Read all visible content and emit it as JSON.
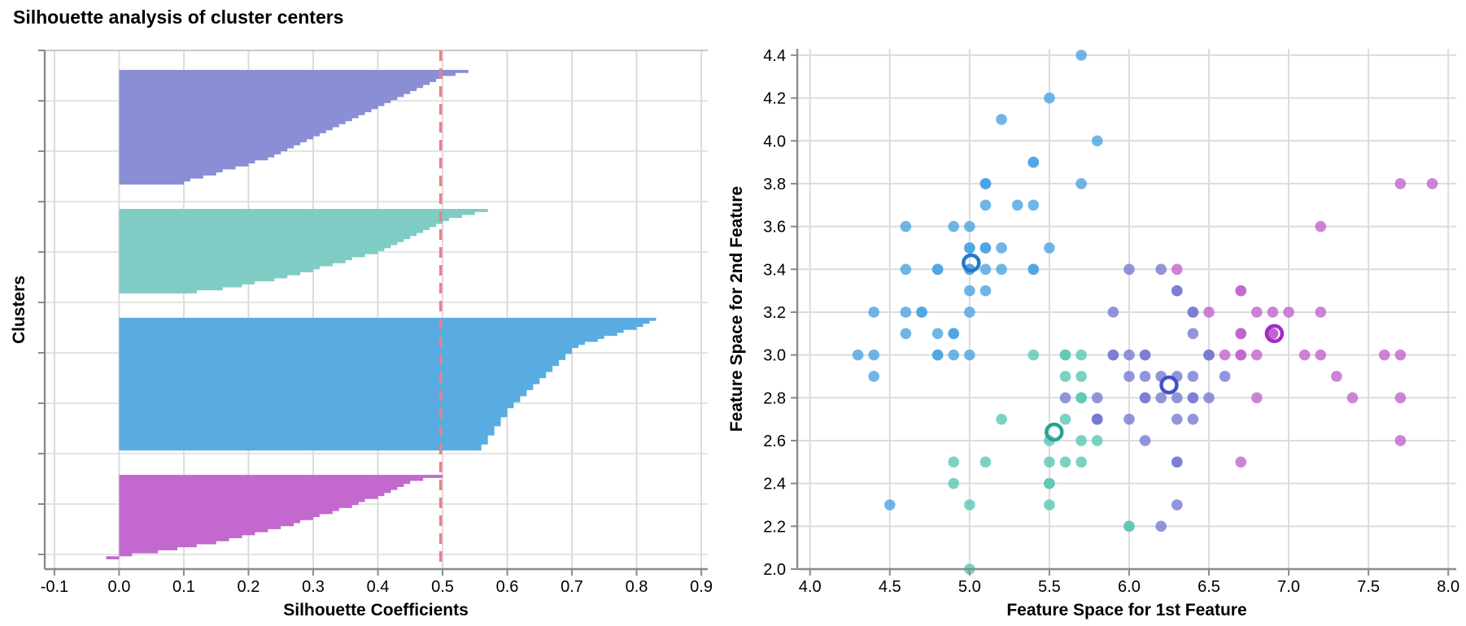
{
  "title": "Silhouette analysis of cluster centers",
  "colors": {
    "grid": "#dcdcdc",
    "spine": "#8a8a8a",
    "frame_light": "#c8c8c8",
    "avg_line": "#ee7e8a",
    "background": "#ffffff"
  },
  "chart_data": [
    {
      "type": "area",
      "name": "silhouette-plot",
      "xlabel": "Silhouette Coefficients",
      "ylabel": "Clusters",
      "xlim": [
        -0.115,
        0.91
      ],
      "xticks": [
        -0.1,
        0.0,
        0.1,
        0.2,
        0.3,
        0.4,
        0.5,
        0.6,
        0.7,
        0.8,
        0.9
      ],
      "xtick_labels": [
        "-0.1",
        "0.0",
        "0.1",
        "0.2",
        "0.3",
        "0.4",
        "0.5",
        "0.6",
        "0.7",
        "0.8",
        "0.9"
      ],
      "grid": true,
      "avg_silhouette": 0.497,
      "clusters": [
        {
          "name": "cluster-slate",
          "color": "#8a8ed4",
          "values": [
            0.54,
            0.52,
            0.5,
            0.49,
            0.48,
            0.47,
            0.46,
            0.45,
            0.44,
            0.43,
            0.42,
            0.41,
            0.4,
            0.39,
            0.38,
            0.37,
            0.36,
            0.35,
            0.34,
            0.33,
            0.32,
            0.31,
            0.3,
            0.29,
            0.28,
            0.27,
            0.26,
            0.25,
            0.24,
            0.23,
            0.21,
            0.2,
            0.18,
            0.16,
            0.15,
            0.13,
            0.11,
            0.1
          ]
        },
        {
          "name": "cluster-teal",
          "color": "#7fccc4",
          "values": [
            0.57,
            0.55,
            0.53,
            0.51,
            0.5,
            0.49,
            0.48,
            0.47,
            0.46,
            0.45,
            0.44,
            0.43,
            0.42,
            0.41,
            0.4,
            0.38,
            0.36,
            0.35,
            0.33,
            0.31,
            0.3,
            0.28,
            0.26,
            0.24,
            0.21,
            0.19,
            0.16,
            0.12
          ]
        },
        {
          "name": "cluster-blue",
          "color": "#58ace2",
          "values": [
            0.83,
            0.82,
            0.81,
            0.8,
            0.78,
            0.77,
            0.75,
            0.74,
            0.72,
            0.71,
            0.7,
            0.7,
            0.69,
            0.69,
            0.68,
            0.68,
            0.67,
            0.67,
            0.66,
            0.66,
            0.65,
            0.65,
            0.64,
            0.64,
            0.63,
            0.63,
            0.62,
            0.62,
            0.61,
            0.61,
            0.6,
            0.6,
            0.6,
            0.59,
            0.59,
            0.59,
            0.58,
            0.58,
            0.58,
            0.57,
            0.57,
            0.57,
            0.56,
            0.56
          ]
        },
        {
          "name": "cluster-magenta",
          "color": "#c268ce",
          "values": [
            0.5,
            0.47,
            0.45,
            0.44,
            0.43,
            0.42,
            0.41,
            0.4,
            0.38,
            0.37,
            0.36,
            0.34,
            0.33,
            0.31,
            0.3,
            0.28,
            0.27,
            0.25,
            0.23,
            0.21,
            0.19,
            0.17,
            0.15,
            0.12,
            0.09,
            0.06,
            0.02,
            -0.02
          ]
        }
      ]
    },
    {
      "type": "scatter",
      "name": "feature-space-scatter",
      "xlabel": "Feature Space for 1st Feature",
      "ylabel": "Feature Space for 2nd Feature",
      "xlim": [
        3.92,
        8.05
      ],
      "ylim": [
        2.0,
        4.43
      ],
      "xticks": [
        4.0,
        4.5,
        5.0,
        5.5,
        6.0,
        6.5,
        7.0,
        7.5,
        8.0
      ],
      "xtick_labels": [
        "4.0",
        "4.5",
        "5.0",
        "5.5",
        "6.0",
        "6.5",
        "7.0",
        "7.5",
        "8.0"
      ],
      "yticks": [
        2.0,
        2.2,
        2.4,
        2.6,
        2.8,
        3.0,
        3.2,
        3.4,
        3.6,
        3.8,
        4.0,
        4.2,
        4.4
      ],
      "ytick_labels": [
        "2.0",
        "2.2",
        "2.4",
        "2.6",
        "2.8",
        "3.0",
        "3.2",
        "3.4",
        "3.6",
        "3.8",
        "4.0",
        "4.2",
        "4.4"
      ],
      "grid": true,
      "cluster_colors": [
        "#4ba2e2",
        "#5cc5b4",
        "#767bd2",
        "#c263ce"
      ],
      "center_ring_colors": [
        "#2678c8",
        "#27a492",
        "#4053c8",
        "#a22cc8"
      ],
      "centers": [
        [
          5.01,
          3.43
        ],
        [
          5.53,
          2.64
        ],
        [
          6.25,
          2.86
        ],
        [
          6.91,
          3.1
        ]
      ],
      "overrides": {
        "4.5,2.3": 0,
        "5.6,2.8": 2,
        "5.8,2.7": 2,
        "5.8,2.8": 2,
        "6.0,2.2": 2,
        "6.3,3.4": 3,
        "6.6,3.0": 2,
        "6.7,2.5": 3,
        "7.0,3.2": 2
      },
      "points": [
        [
          5.1,
          3.5
        ],
        [
          4.9,
          3.0
        ],
        [
          4.7,
          3.2
        ],
        [
          4.6,
          3.1
        ],
        [
          5.0,
          3.6
        ],
        [
          5.4,
          3.9
        ],
        [
          4.6,
          3.4
        ],
        [
          5.0,
          3.4
        ],
        [
          4.4,
          2.9
        ],
        [
          4.9,
          3.1
        ],
        [
          5.4,
          3.7
        ],
        [
          4.8,
          3.4
        ],
        [
          4.8,
          3.0
        ],
        [
          4.3,
          3.0
        ],
        [
          5.8,
          4.0
        ],
        [
          5.7,
          4.4
        ],
        [
          5.4,
          3.9
        ],
        [
          5.1,
          3.5
        ],
        [
          5.7,
          3.8
        ],
        [
          5.1,
          3.8
        ],
        [
          5.4,
          3.4
        ],
        [
          5.1,
          3.7
        ],
        [
          4.6,
          3.6
        ],
        [
          5.1,
          3.3
        ],
        [
          4.8,
          3.4
        ],
        [
          5.0,
          3.0
        ],
        [
          5.0,
          3.4
        ],
        [
          5.2,
          3.5
        ],
        [
          5.2,
          3.4
        ],
        [
          4.7,
          3.2
        ],
        [
          4.8,
          3.1
        ],
        [
          5.4,
          3.4
        ],
        [
          5.2,
          4.1
        ],
        [
          5.5,
          4.2
        ],
        [
          4.9,
          3.1
        ],
        [
          5.0,
          3.2
        ],
        [
          5.5,
          3.5
        ],
        [
          4.9,
          3.6
        ],
        [
          4.4,
          3.0
        ],
        [
          5.1,
          3.4
        ],
        [
          5.0,
          3.5
        ],
        [
          4.5,
          2.3
        ],
        [
          4.4,
          3.2
        ],
        [
          5.0,
          3.5
        ],
        [
          5.1,
          3.8
        ],
        [
          4.8,
          3.0
        ],
        [
          5.1,
          3.8
        ],
        [
          4.6,
          3.2
        ],
        [
          5.3,
          3.7
        ],
        [
          5.0,
          3.3
        ],
        [
          7.0,
          3.2
        ],
        [
          6.4,
          3.2
        ],
        [
          6.9,
          3.1
        ],
        [
          5.5,
          2.3
        ],
        [
          6.5,
          2.8
        ],
        [
          5.7,
          2.8
        ],
        [
          6.3,
          3.3
        ],
        [
          4.9,
          2.4
        ],
        [
          6.6,
          2.9
        ],
        [
          5.2,
          2.7
        ],
        [
          5.0,
          2.0
        ],
        [
          5.9,
          3.0
        ],
        [
          6.0,
          2.2
        ],
        [
          6.1,
          2.9
        ],
        [
          5.6,
          2.9
        ],
        [
          6.7,
          3.1
        ],
        [
          5.6,
          3.0
        ],
        [
          5.8,
          2.7
        ],
        [
          6.2,
          2.2
        ],
        [
          5.6,
          2.5
        ],
        [
          5.9,
          3.2
        ],
        [
          6.1,
          2.8
        ],
        [
          6.3,
          2.5
        ],
        [
          6.1,
          2.8
        ],
        [
          6.4,
          2.9
        ],
        [
          6.6,
          3.0
        ],
        [
          6.8,
          2.8
        ],
        [
          6.7,
          3.0
        ],
        [
          6.0,
          2.9
        ],
        [
          5.7,
          2.6
        ],
        [
          5.5,
          2.4
        ],
        [
          5.5,
          2.4
        ],
        [
          5.8,
          2.7
        ],
        [
          6.0,
          2.7
        ],
        [
          5.4,
          3.0
        ],
        [
          6.0,
          3.4
        ],
        [
          6.7,
          3.1
        ],
        [
          6.3,
          2.3
        ],
        [
          5.6,
          3.0
        ],
        [
          5.5,
          2.5
        ],
        [
          5.5,
          2.6
        ],
        [
          6.1,
          3.0
        ],
        [
          5.8,
          2.6
        ],
        [
          5.0,
          2.3
        ],
        [
          5.6,
          2.7
        ],
        [
          5.7,
          3.0
        ],
        [
          5.7,
          2.9
        ],
        [
          6.2,
          2.9
        ],
        [
          5.1,
          2.5
        ],
        [
          5.7,
          2.8
        ],
        [
          6.3,
          3.3
        ],
        [
          5.8,
          2.7
        ],
        [
          7.1,
          3.0
        ],
        [
          6.3,
          2.9
        ],
        [
          6.5,
          3.0
        ],
        [
          7.6,
          3.0
        ],
        [
          4.9,
          2.5
        ],
        [
          7.3,
          2.9
        ],
        [
          6.7,
          2.5
        ],
        [
          7.2,
          3.6
        ],
        [
          6.5,
          3.2
        ],
        [
          6.4,
          2.7
        ],
        [
          6.8,
          3.0
        ],
        [
          5.7,
          2.5
        ],
        [
          5.8,
          2.8
        ],
        [
          6.4,
          3.2
        ],
        [
          6.5,
          3.0
        ],
        [
          7.7,
          3.8
        ],
        [
          7.7,
          2.6
        ],
        [
          6.0,
          2.2
        ],
        [
          6.9,
          3.2
        ],
        [
          5.6,
          2.8
        ],
        [
          7.7,
          2.8
        ],
        [
          6.3,
          2.7
        ],
        [
          6.7,
          3.3
        ],
        [
          7.2,
          3.2
        ],
        [
          6.2,
          2.8
        ],
        [
          6.1,
          3.0
        ],
        [
          6.4,
          2.8
        ],
        [
          7.2,
          3.0
        ],
        [
          7.4,
          2.8
        ],
        [
          7.9,
          3.8
        ],
        [
          6.4,
          2.8
        ],
        [
          6.3,
          2.8
        ],
        [
          6.1,
          2.6
        ],
        [
          7.7,
          3.0
        ],
        [
          6.3,
          3.4
        ],
        [
          6.4,
          3.1
        ],
        [
          6.0,
          3.0
        ],
        [
          6.9,
          3.1
        ],
        [
          6.7,
          3.1
        ],
        [
          6.9,
          3.1
        ],
        [
          5.8,
          2.7
        ],
        [
          6.8,
          3.2
        ],
        [
          6.7,
          3.3
        ],
        [
          6.7,
          3.0
        ],
        [
          6.3,
          2.5
        ],
        [
          6.5,
          3.0
        ],
        [
          6.2,
          3.4
        ],
        [
          5.9,
          3.0
        ]
      ]
    }
  ]
}
